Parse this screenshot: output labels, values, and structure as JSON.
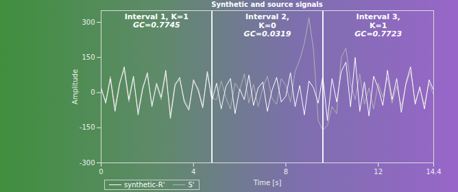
{
  "chart_data": {
    "type": "line",
    "title": "Synthetic and source signals",
    "x_label": "Time [s]",
    "y_label": "Amplitude",
    "x": [
      0,
      0.2,
      0.4,
      0.6,
      0.8,
      1,
      1.2,
      1.4,
      1.6,
      1.8,
      2,
      2.2,
      2.4,
      2.6,
      2.8,
      3,
      3.2,
      3.4,
      3.6,
      3.8,
      4,
      4.2,
      4.4,
      4.6,
      4.8,
      5,
      5.2,
      5.4,
      5.6,
      5.8,
      6,
      6.2,
      6.4,
      6.6,
      6.8,
      7,
      7.2,
      7.4,
      7.6,
      7.8,
      8,
      8.2,
      8.4,
      8.6,
      8.8,
      9,
      9.2,
      9.4,
      9.6,
      9.8,
      10,
      10.2,
      10.4,
      10.6,
      10.8,
      11,
      11.2,
      11.4,
      11.6,
      11.8,
      12,
      12.2,
      12.4,
      12.6,
      12.8,
      13,
      13.2,
      13.4,
      13.6,
      13.8,
      14,
      14.2,
      14.4
    ],
    "series": [
      {
        "name": "synthetic-R'",
        "color": "#ffffff",
        "line_style": "solid",
        "values": [
          20,
          -45,
          60,
          -80,
          35,
          110,
          -30,
          70,
          -95,
          15,
          85,
          -60,
          40,
          -20,
          95,
          -110,
          30,
          65,
          -40,
          -75,
          55,
          10,
          -65,
          90,
          -35,
          40,
          -70,
          25,
          60,
          -90,
          15,
          -30,
          75,
          -55,
          20,
          45,
          -80,
          10,
          65,
          -40,
          -15,
          85,
          -60,
          30,
          -95,
          50,
          20,
          -45,
          70,
          -120,
          60,
          -40,
          90,
          130,
          -60,
          150,
          -80,
          45,
          -100,
          70,
          20,
          -55,
          95,
          -30,
          60,
          -85,
          40,
          110,
          -50,
          25,
          -70,
          55,
          10
        ]
      },
      {
        "name": "S'",
        "color": "#b4b4b4",
        "line_style": "solid",
        "values": [
          10,
          -35,
          70,
          -60,
          45,
          95,
          -40,
          60,
          -80,
          25,
          75,
          -50,
          30,
          -30,
          80,
          -95,
          40,
          55,
          -30,
          -65,
          45,
          20,
          -55,
          80,
          -25,
          -30,
          50,
          -20,
          -70,
          40,
          10,
          80,
          -45,
          35,
          -60,
          20,
          70,
          -25,
          -50,
          60,
          30,
          -40,
          90,
          140,
          210,
          320,
          180,
          -120,
          -160,
          -140,
          -60,
          -90,
          150,
          190,
          40,
          -30,
          80,
          -50,
          20,
          -70,
          40,
          -20,
          65,
          -45,
          30,
          -60,
          35,
          90,
          -40,
          15,
          -50,
          40,
          -10
        ]
      }
    ],
    "intervals": [
      {
        "start": 0,
        "end": 4.8,
        "label": "Interval 1, K=1",
        "gc": "GC=0.7745"
      },
      {
        "start": 4.8,
        "end": 9.6,
        "label": "Interval 2,\nK=0",
        "gc": "GC=0.0319"
      },
      {
        "start": 9.6,
        "end": 14.4,
        "label": "Interval 3,\nK=1",
        "gc": "GC=0.7723"
      }
    ],
    "xlim": [
      0,
      14.4
    ],
    "xticks": [
      0,
      4,
      8,
      12,
      14.4
    ],
    "ylim": [
      -300,
      350
    ],
    "yticks": [
      -300,
      -150,
      0,
      150,
      300
    ],
    "grid": false,
    "legend": "lower left"
  }
}
